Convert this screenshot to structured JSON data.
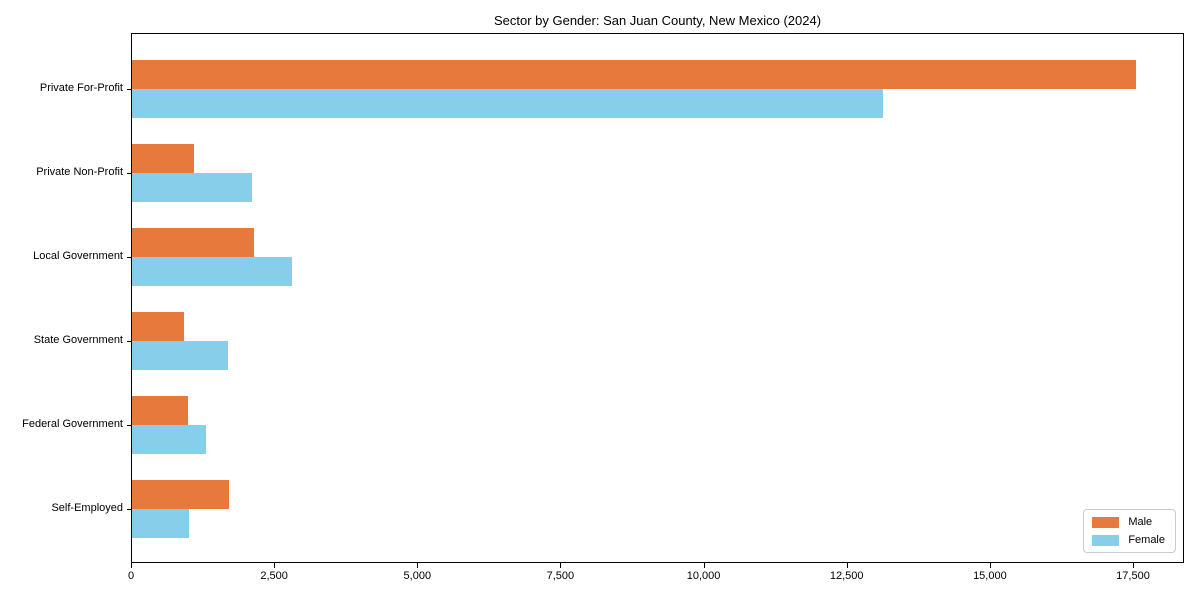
{
  "title": "Sector by Gender: San Juan County, New Mexico (2024)",
  "colors": {
    "male": "#e8793d",
    "female": "#87ceeb",
    "spine": "#000000",
    "background": "#ffffff",
    "legend_border": "#cccccc"
  },
  "chart_data": {
    "type": "bar",
    "orientation": "horizontal",
    "title": "Sector by Gender: San Juan County, New Mexico (2024)",
    "categories": [
      "Private For-Profit",
      "Private Non-Profit",
      "Local Government",
      "State Government",
      "Federal Government",
      "Self-Employed"
    ],
    "series": [
      {
        "name": "Male",
        "color": "#e8793d",
        "values": [
          17530,
          1080,
          2130,
          910,
          980,
          1690
        ]
      },
      {
        "name": "Female",
        "color": "#87ceeb",
        "values": [
          13110,
          2100,
          2790,
          1680,
          1290,
          1000
        ]
      }
    ],
    "xlabel": "",
    "ylabel": "",
    "xlim": [
      0,
      18390
    ],
    "x_ticks": [
      0,
      2500,
      5000,
      7500,
      10000,
      12500,
      15000,
      17500
    ],
    "x_tick_labels": [
      "0",
      "2,500",
      "5,000",
      "7,500",
      "10,000",
      "12,500",
      "15,000",
      "17,500"
    ],
    "grid": false,
    "legend_position": "lower right"
  }
}
